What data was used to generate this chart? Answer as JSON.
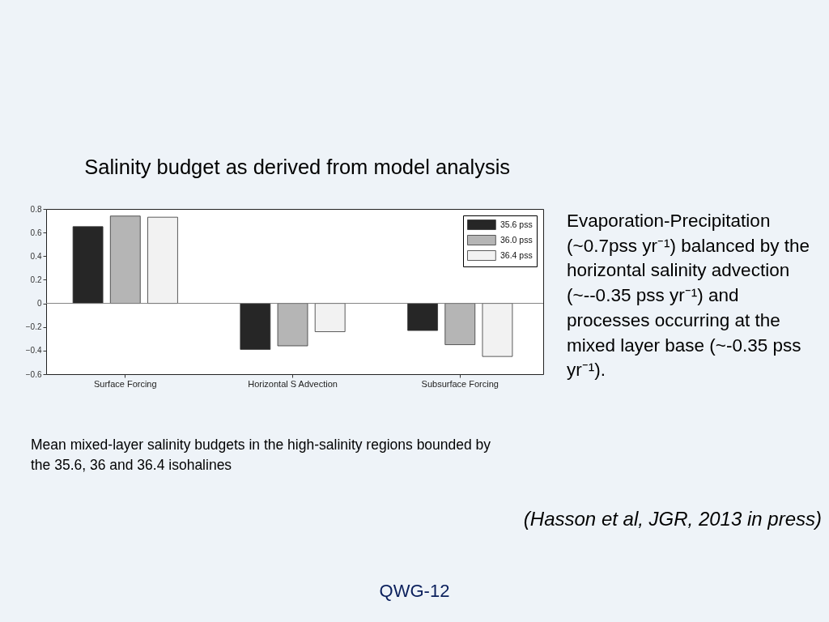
{
  "chart_data": {
    "type": "bar",
    "title": "Salinity budget as derived from model analysis",
    "categories": [
      "Surface Forcing",
      "Horizontal S Advection",
      "Subsurface Forcing"
    ],
    "series": [
      {
        "name": "35.6 pss",
        "color": "#262626",
        "values": [
          0.65,
          -0.39,
          -0.23
        ]
      },
      {
        "name": "36.0 pss",
        "color": "#b5b5b5",
        "values": [
          0.74,
          -0.36,
          -0.35
        ]
      },
      {
        "name": "36.4 pss",
        "color": "#f2f2f2",
        "values": [
          0.73,
          -0.24,
          -0.45
        ]
      }
    ],
    "ylim": [
      -0.6,
      0.8
    ],
    "yticks": [
      -0.6,
      -0.4,
      -0.2,
      0,
      0.2,
      0.4,
      0.6,
      0.8
    ],
    "ref_lines": [
      {
        "axis": "y",
        "value": 0,
        "color": "#808080"
      }
    ],
    "legend": "top right",
    "grid": false,
    "annotations": [
      "Evaporation-Precipitation (~0.7pss yr⁻¹) balanced by the horizontal salinity advection (~--0.35 pss yr⁻¹) and processes occurring at the mixed layer base (~-0.35 pss yr⁻¹).",
      "Mean mixed-layer salinity budgets in the high-salinity regions bounded by the 35.6, 36 and 36.4 isohalines",
      "(Hasson et al, JGR, 2013 in press)",
      "QWG-12"
    ]
  }
}
